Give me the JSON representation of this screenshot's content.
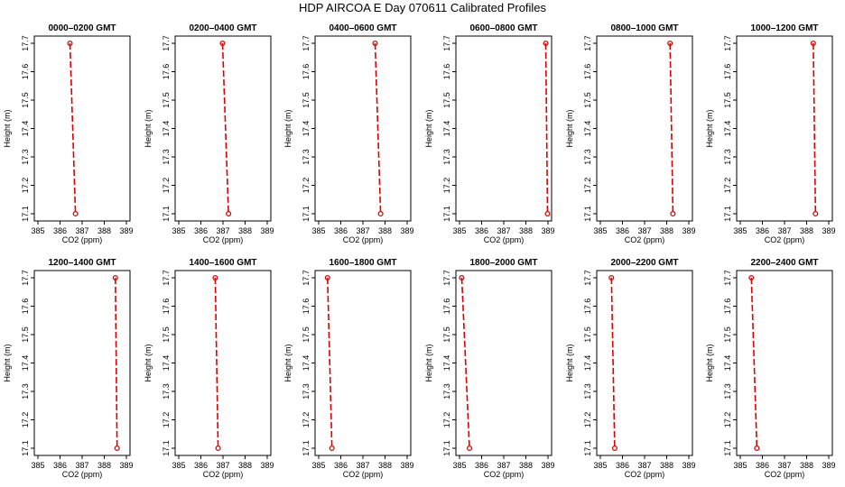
{
  "figure": {
    "title": "HDP  AIRCOA E  Day 070611  Calibrated Profiles"
  },
  "chart_data": {
    "type": "scatter",
    "layout": "2 rows x 6 columns",
    "xlabel": "CO2 (ppm)",
    "ylabel": "Height (m)",
    "xlim": [
      385,
      389
    ],
    "ylim": [
      17.1,
      17.7
    ],
    "xticks": [
      "385",
      "386",
      "387",
      "388",
      "389"
    ],
    "yticks": [
      "17.1",
      "17.2",
      "17.3",
      "17.4",
      "17.5",
      "17.6",
      "17.7"
    ],
    "panels": [
      {
        "title": "0000–0200 GMT",
        "points": [
          {
            "x": 386.45,
            "y": 17.7
          },
          {
            "x": 386.7,
            "y": 17.1
          }
        ]
      },
      {
        "title": "0200–0400 GMT",
        "points": [
          {
            "x": 386.98,
            "y": 17.7
          },
          {
            "x": 387.25,
            "y": 17.1
          }
        ]
      },
      {
        "title": "0400–0600 GMT",
        "points": [
          {
            "x": 387.55,
            "y": 17.7
          },
          {
            "x": 387.8,
            "y": 17.1
          }
        ]
      },
      {
        "title": "0600–0800 GMT",
        "points": [
          {
            "x": 388.9,
            "y": 17.7
          },
          {
            "x": 388.98,
            "y": 17.1
          }
        ]
      },
      {
        "title": "0800–1000 GMT",
        "points": [
          {
            "x": 388.15,
            "y": 17.7
          },
          {
            "x": 388.28,
            "y": 17.1
          }
        ]
      },
      {
        "title": "1000–1200 GMT",
        "points": [
          {
            "x": 388.3,
            "y": 17.7
          },
          {
            "x": 388.4,
            "y": 17.1
          }
        ]
      },
      {
        "title": "1200–1400 GMT",
        "points": [
          {
            "x": 388.5,
            "y": 17.7
          },
          {
            "x": 388.58,
            "y": 17.1
          }
        ]
      },
      {
        "title": "1400–1600 GMT",
        "points": [
          {
            "x": 386.65,
            "y": 17.7
          },
          {
            "x": 386.78,
            "y": 17.1
          }
        ]
      },
      {
        "title": "1600–1800 GMT",
        "points": [
          {
            "x": 385.4,
            "y": 17.7
          },
          {
            "x": 385.6,
            "y": 17.1
          }
        ]
      },
      {
        "title": "1800–2000 GMT",
        "points": [
          {
            "x": 385.1,
            "y": 17.7
          },
          {
            "x": 385.45,
            "y": 17.1
          }
        ]
      },
      {
        "title": "2000–2200 GMT",
        "points": [
          {
            "x": 385.5,
            "y": 17.7
          },
          {
            "x": 385.65,
            "y": 17.1
          }
        ]
      },
      {
        "title": "2200–2400 GMT",
        "points": [
          {
            "x": 385.5,
            "y": 17.7
          },
          {
            "x": 385.75,
            "y": 17.1
          }
        ]
      }
    ]
  },
  "colors": {
    "profile": "#e00000",
    "axes": "#000000"
  }
}
